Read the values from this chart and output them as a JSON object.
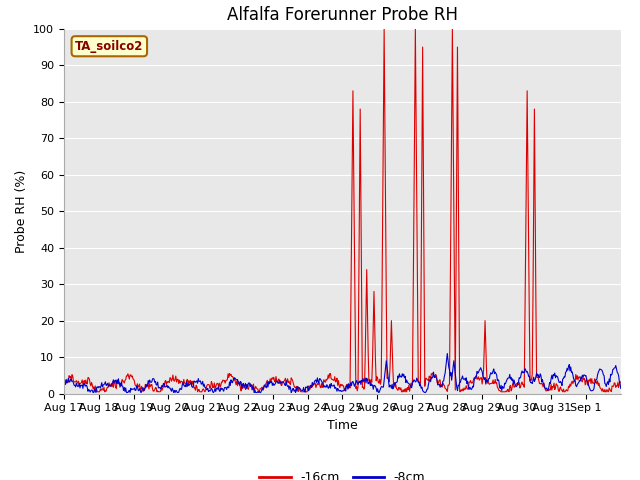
{
  "title": "Alfalfa Forerunner Probe RH",
  "ylabel": "Probe RH (%)",
  "xlabel": "Time",
  "ylim": [
    0,
    100
  ],
  "xtick_labels": [
    "Aug 17",
    "Aug 18",
    "Aug 19",
    "Aug 20",
    "Aug 21",
    "Aug 22",
    "Aug 23",
    "Aug 24",
    "Aug 25",
    "Aug 26",
    "Aug 27",
    "Aug 28",
    "Aug 29",
    "Aug 30",
    "Aug 31",
    "Sep 1"
  ],
  "legend_label_text": "TA_soilco2",
  "legend_label_color": "#880000",
  "legend_label_bg": "#ffffcc",
  "legend_label_border": "#aa6600",
  "line1_label": "-16cm",
  "line1_color": "#dd0000",
  "line2_label": "-8cm",
  "line2_color": "#0000cc",
  "background_color": "#e8e8e8",
  "grid_color": "#ffffff",
  "title_fontsize": 12,
  "axis_fontsize": 9,
  "tick_fontsize": 8
}
